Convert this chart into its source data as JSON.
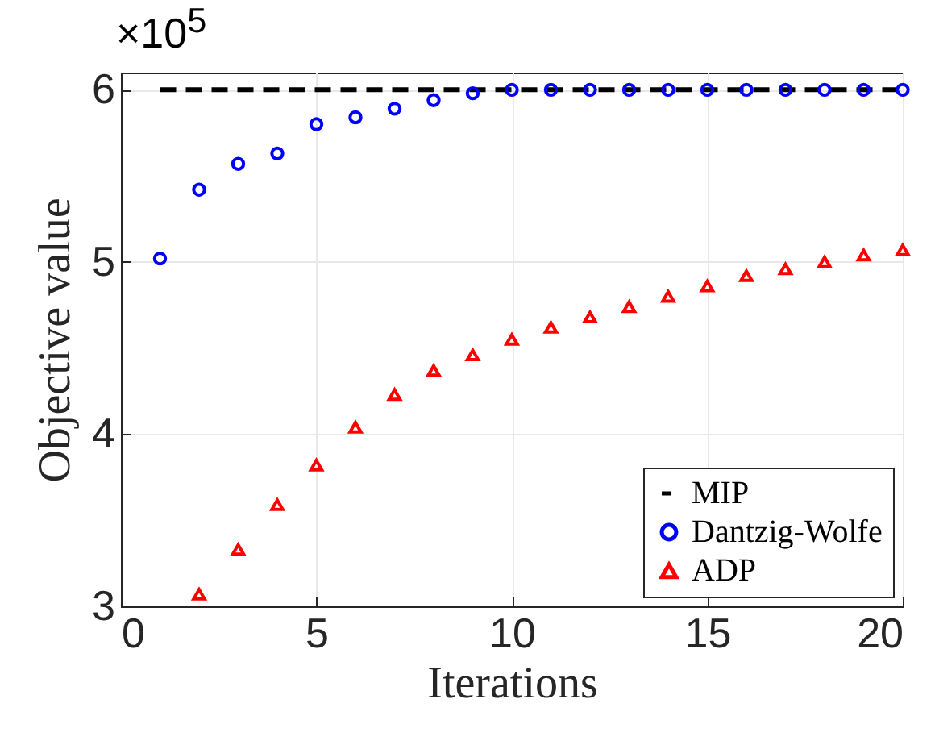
{
  "chart_data": {
    "type": "scatter",
    "xlabel": "Iterations",
    "ylabel": "Objective value",
    "annotations": [
      "×10$^{5}$"
    ],
    "x": [
      1,
      2,
      3,
      4,
      5,
      6,
      7,
      8,
      9,
      10,
      11,
      12,
      13,
      14,
      15,
      16,
      17,
      18,
      19,
      20
    ],
    "series": [
      {
        "name": "MIP",
        "type": "line",
        "line_style": "dashed",
        "marker": "none",
        "color": "#000000",
        "x": [
          1,
          20
        ],
        "values": [
          6,
          6
        ]
      },
      {
        "name": "Dantzig-Wolfe",
        "marker": "circle",
        "color": "#0000ff",
        "values": [
          5.02,
          5.42,
          5.57,
          5.63,
          5.8,
          5.84,
          5.89,
          5.94,
          5.98,
          6.0,
          6.0,
          6.0,
          6.0,
          6.0,
          6.0,
          6.0,
          6.0,
          6.0,
          6.0,
          6.0
        ]
      },
      {
        "name": "ADP",
        "marker": "triangle",
        "color": "#ff0000",
        "values": [
          null,
          3.07,
          3.33,
          3.59,
          3.82,
          4.04,
          4.23,
          4.37,
          4.46,
          4.55,
          4.62,
          4.68,
          4.74,
          4.8,
          4.86,
          4.92,
          4.96,
          5.0,
          5.04,
          5.07
        ]
      }
    ],
    "xlim": [
      0,
      20
    ],
    "xticks": [
      0,
      5,
      10,
      15,
      20
    ],
    "ylim": [
      3,
      6.1
    ],
    "yticks": [
      3,
      4,
      5,
      6
    ],
    "grid": true,
    "legend": "bottom right"
  }
}
